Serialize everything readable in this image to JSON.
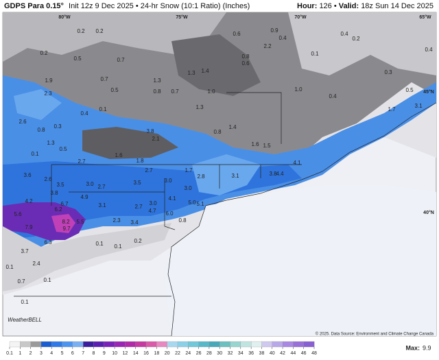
{
  "header": {
    "model": "GDPS Para 0.15°",
    "title": "Init 12z 9 Dec 2025 • 24-hr Snow (10:1 Ratio) (Inches)",
    "hour_label": "Hour:",
    "hour": "126",
    "separator": "•",
    "valid_label": "Valid:",
    "valid": "18z Sun 14 Dec 2025"
  },
  "map": {
    "coordinates": [
      "80°W",
      "75°W",
      "70°W",
      "65°W",
      "45°N",
      "40°N"
    ],
    "labels": [
      "0.2",
      "0.2",
      "0.2",
      "0.5",
      "0.7",
      "0.7",
      "0.5",
      "0.6",
      "0.9",
      "0.4",
      "2.2",
      "0.8",
      "0.6",
      "1.3",
      "1.4",
      "0.8",
      "0.7",
      "1.3",
      "1.0",
      "0.1",
      "0.4",
      "0.2",
      "0.3",
      "0.4",
      "1.0",
      "0.4",
      "0.5",
      "3.1",
      "1.7",
      "2.3",
      "1.9",
      "0.1",
      "0.4",
      "0.3",
      "0.8",
      "2.6",
      "1.3",
      "0.5",
      "0.1",
      "1.3",
      "1.4",
      "1.6",
      "1.5",
      "0.8",
      "3.8",
      "2.1",
      "1.6",
      "1.8",
      "2.7",
      "2.7",
      "1.7",
      "2.8",
      "3.1",
      "4.1",
      "4.4",
      "3.8",
      "3.6",
      "2.6",
      "3.5",
      "3.0",
      "2.7",
      "3.5",
      "3.0",
      "3.0",
      "3.8",
      "4.9",
      "4.2",
      "6.7",
      "3.1",
      "2.7",
      "3.0",
      "4.7",
      "4.1",
      "5.0",
      "5.1",
      "5.6",
      "6.2",
      "8.2",
      "5.5",
      "9.7",
      "7.9",
      "6.3",
      "3.7",
      "2.3",
      "3.4",
      "6.0",
      "0.8",
      "2.4",
      "0.1",
      "0.1",
      "0.2",
      "0.1",
      "0.7",
      "0.1",
      "0.1"
    ],
    "logo": "WeatherBELL",
    "credit": "© 2025. Data Source: Environment and Climate Change Canada"
  },
  "legend": {
    "ticks": [
      0.1,
      1,
      2,
      3,
      4,
      5,
      6,
      7,
      8,
      9,
      10,
      12,
      14,
      16,
      18,
      20,
      22,
      24,
      26,
      28,
      30,
      32,
      34,
      36,
      38,
      40,
      42,
      44,
      46,
      48
    ],
    "colors": [
      "#f4f4f4",
      "#c8c8c8",
      "#9a9a9a",
      "#1a5fd0",
      "#2f7ae6",
      "#4c95ef",
      "#7ab0f2",
      "#3a1e9c",
      "#5a1fb0",
      "#7a22b8",
      "#9a24b4",
      "#b02aa8",
      "#c43aa0",
      "#d85aa8",
      "#e888c0",
      "#a8d8f0",
      "#8cd0e8",
      "#70c8d8",
      "#58b8c8",
      "#48a8b8",
      "#6cc0c0",
      "#98d4d0",
      "#c0e4e0",
      "#e0f0ee",
      "#d0c8ee",
      "#b8a8e8",
      "#a888e0",
      "#9870d8",
      "#8860d0"
    ],
    "max_label": "Max:",
    "max": "9.9"
  }
}
